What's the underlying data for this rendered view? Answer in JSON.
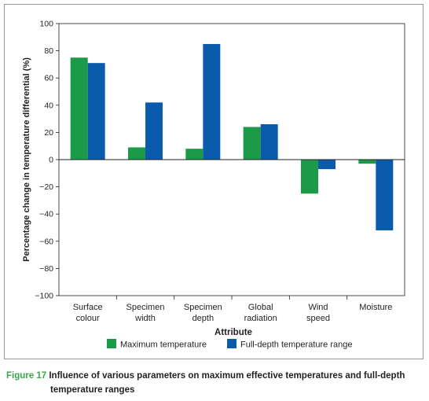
{
  "chart_data": {
    "type": "bar",
    "categories": [
      [
        "Surface",
        "colour"
      ],
      [
        "Specimen",
        "width"
      ],
      [
        "Specimen",
        "depth"
      ],
      [
        "Global",
        "radiation"
      ],
      [
        "Wind",
        "speed"
      ],
      [
        "Moisture"
      ]
    ],
    "series": [
      {
        "name": "Maximum temperature",
        "color": "#1d9a48",
        "values": [
          75,
          9,
          8,
          24,
          -25,
          -3
        ]
      },
      {
        "name": "Full-depth temperature range",
        "color": "#0a5bab",
        "values": [
          71,
          42,
          85,
          26,
          -7,
          -52
        ]
      }
    ],
    "ylim": [
      -100,
      100
    ],
    "yticks": [
      100,
      80,
      60,
      40,
      20,
      0,
      -20,
      -40,
      -60,
      -80,
      -100
    ],
    "ytick_labels": [
      "100",
      "80",
      "60",
      "40",
      "20",
      "0",
      "−20",
      "−40",
      "−60",
      "−80",
      "−100"
    ],
    "xlabel": "Attribute",
    "ylabel": "Percentage change in temperature differential (%)",
    "legend_position": "bottom",
    "grid": false
  },
  "caption": {
    "label": "Figure 17",
    "text_line1": "Influence of various parameters on maximum effective temperatures and full-depth",
    "text_line2": "temperature ranges"
  }
}
